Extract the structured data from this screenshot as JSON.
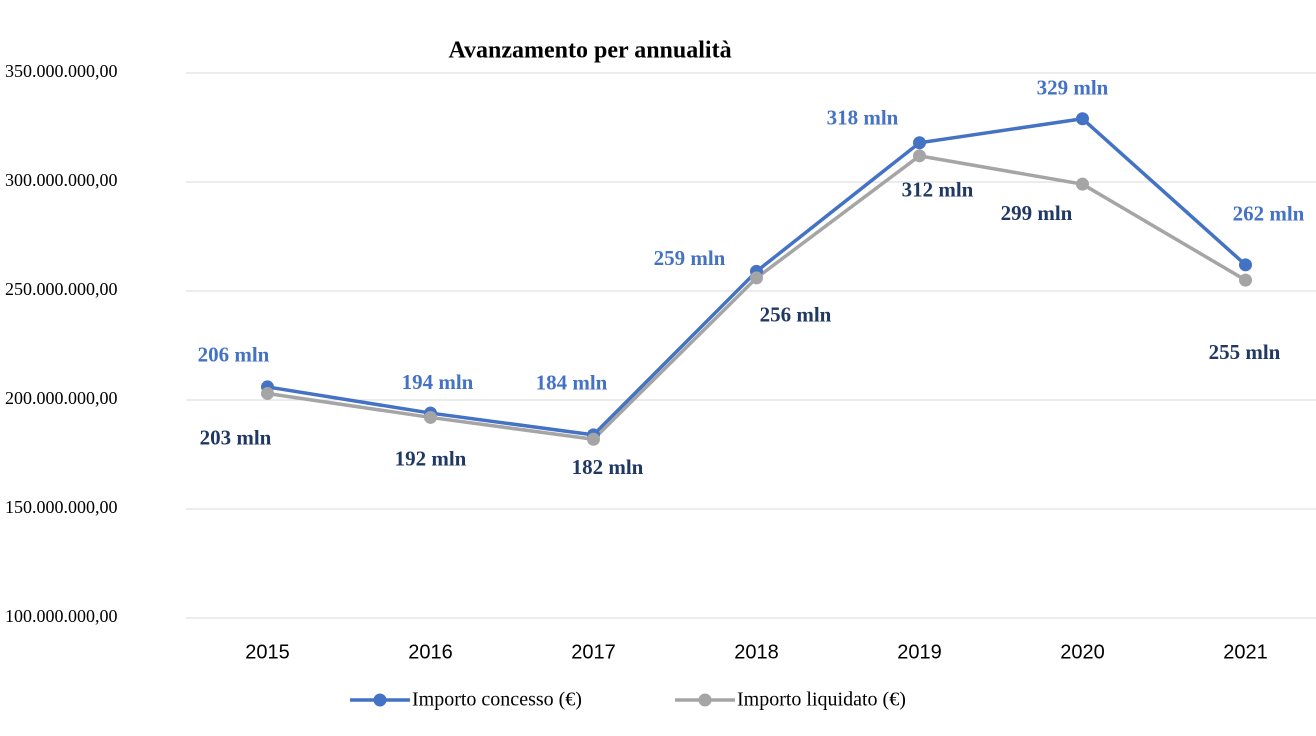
{
  "chart_data": {
    "type": "line",
    "title": "Avanzamento per annualità",
    "categories": [
      "2015",
      "2016",
      "2017",
      "2018",
      "2019",
      "2020",
      "2021"
    ],
    "series": [
      {
        "name": "Importo concesso (€)",
        "color": "#4472c4",
        "values": [
          206000000,
          194000000,
          184000000,
          259000000,
          318000000,
          329000000,
          262000000
        ],
        "value_labels": [
          "206 mln",
          "194 mln",
          "184 mln",
          "259 mln",
          "318 mln",
          "329 mln",
          "262 mln"
        ]
      },
      {
        "name": "Importo liquidato (€)",
        "color": "#a5a5a5",
        "values": [
          203000000,
          192000000,
          182000000,
          256000000,
          312000000,
          299000000,
          255000000
        ],
        "value_labels": [
          "203 mln",
          "192 mln",
          "182 mln",
          "256 mln",
          "312 mln",
          "299 mln",
          "255 mln"
        ]
      }
    ],
    "ylim": [
      100000000,
      350000000
    ],
    "yticks": [
      {
        "value": 100000000,
        "label": "100.000.000,00"
      },
      {
        "value": 150000000,
        "label": "150.000.000,00"
      },
      {
        "value": 200000000,
        "label": "200.000.000,00"
      },
      {
        "value": 250000000,
        "label": "250.000.000,00"
      },
      {
        "value": 300000000,
        "label": "300.000.000,00"
      },
      {
        "value": 350000000,
        "label": "350.000.000,00"
      }
    ],
    "grid": true,
    "legend": "bottom"
  }
}
